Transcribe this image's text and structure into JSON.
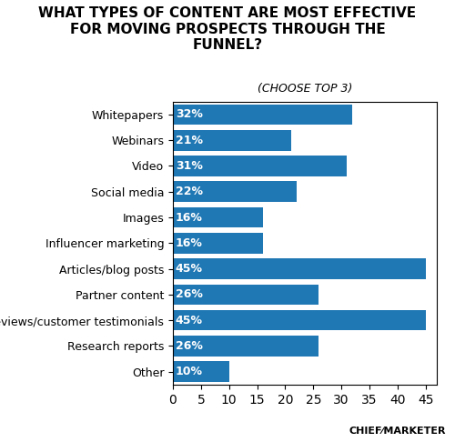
{
  "chart_data": {
    "type": "bar",
    "orientation": "horizontal",
    "title": "WHAT TYPES OF CONTENT ARE MOST EFFECTIVE\nFOR MOVING PROSPECTS THROUGH THE\nFUNNEL?",
    "subtitle": "(CHOOSE TOP 3)",
    "categories": [
      "Whitepapers",
      "Webinars",
      "Video",
      "Social media",
      "Images",
      "Influencer marketing",
      "Articles/blog posts",
      "Partner content",
      "Reviews/customer testimonials",
      "Research reports",
      "Other"
    ],
    "values": [
      32,
      21,
      31,
      22,
      16,
      16,
      45,
      26,
      45,
      26,
      10
    ],
    "value_labels": [
      "32%",
      "21%",
      "31%",
      "22%",
      "16%",
      "16%",
      "45%",
      "26%",
      "45%",
      "26%",
      "10%"
    ],
    "data_labels": true,
    "xlim": [
      0,
      47
    ],
    "xticks": [
      0,
      5,
      10,
      15,
      20,
      25,
      30,
      35,
      40,
      45
    ],
    "grid": false,
    "annotations": [
      "CHIEF⁄MARKETER"
    ]
  }
}
